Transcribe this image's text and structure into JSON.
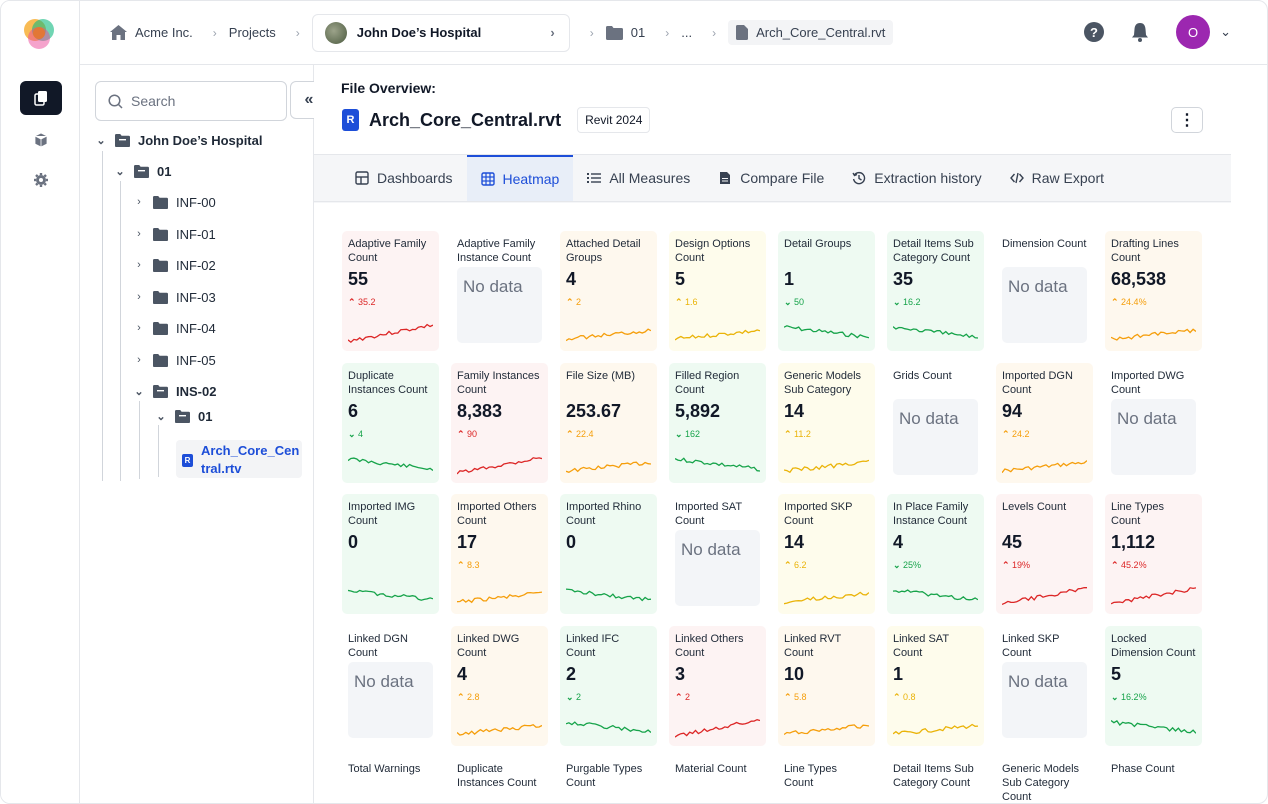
{
  "breadcrumb": {
    "org": "Acme Inc.",
    "projects": "Projects",
    "project": "John Doe’s Hospital",
    "folder": "01",
    "ellipsis": "...",
    "file": "Arch_Core_Central.rvt"
  },
  "user": {
    "initial": "O",
    "avatar_color": "#9c27b0"
  },
  "sidebar": {
    "search_placeholder": "Search",
    "tree": {
      "root": "John Doe’s Hospital",
      "folder_01": "01",
      "children": [
        "INF-00",
        "INF-01",
        "INF-02",
        "INF-03",
        "INF-04",
        "INF-05"
      ],
      "ins": "INS-02",
      "ins_sub": "01",
      "file_line1": "Arch_Core_Cen",
      "file_line2": "tral.rtv"
    }
  },
  "file_overview": {
    "label": "File Overview:",
    "name": "Arch_Core_Central.rvt",
    "version": "Revit 2024",
    "file_icon": "R"
  },
  "tabs": [
    {
      "label": "Dashboards",
      "icon": "grid-icon"
    },
    {
      "label": "Heatmap",
      "icon": "table-icon",
      "active": true
    },
    {
      "label": "All Measures",
      "icon": "list-icon"
    },
    {
      "label": "Compare File",
      "icon": "document-icon"
    },
    {
      "label": "Extraction history",
      "icon": "history-icon"
    },
    {
      "label": "Raw Export",
      "icon": "code-icon"
    }
  ],
  "colors": {
    "red": "#dc2626",
    "orange": "#f59e0b",
    "yellow": "#eab308",
    "green": "#16a34a",
    "accent": "#1d4ed8"
  },
  "no_data_label": "No data",
  "cards": [
    {
      "name": "Adaptive Family Count",
      "value": "55",
      "trend": "35.2",
      "dir": "double-up",
      "status": "red"
    },
    {
      "name": "Adaptive Family Instance Count",
      "value": null,
      "status": "white"
    },
    {
      "name": "Attached Detail Groups",
      "value": "4",
      "trend": "2",
      "dir": "up",
      "status": "orange"
    },
    {
      "name": "Design Options Count",
      "value": "5",
      "trend": "1.6",
      "dir": "up",
      "status": "yellow"
    },
    {
      "name": "Detail Groups",
      "value": "1",
      "trend": "50",
      "dir": "down",
      "status": "green"
    },
    {
      "name": "Detail Items Sub Category Count",
      "value": "35",
      "trend": "16.2",
      "dir": "down",
      "status": "green"
    },
    {
      "name": "Dimension Count",
      "value": null,
      "status": "white"
    },
    {
      "name": "Drafting Lines Count",
      "value": "68,538",
      "trend": "24.4%",
      "dir": "up",
      "status": "orange"
    },
    {
      "name": "Duplicate Instances Count",
      "value": "6",
      "trend": "4",
      "dir": "down",
      "status": "green"
    },
    {
      "name": "Family Instances Count",
      "value": "8,383",
      "trend": "90",
      "dir": "double-up",
      "status": "red"
    },
    {
      "name": "File Size (MB)",
      "value": "253.67",
      "trend": "22.4",
      "dir": "up",
      "status": "orange"
    },
    {
      "name": "Filled Region Count",
      "value": "5,892",
      "trend": "162",
      "dir": "down",
      "status": "green"
    },
    {
      "name": "Generic Models Sub Category",
      "value": "14",
      "trend": "11.2",
      "dir": "up",
      "status": "yellow"
    },
    {
      "name": "Grids Count",
      "value": null,
      "status": "white"
    },
    {
      "name": "Imported DGN Count",
      "value": "94",
      "trend": "24.2",
      "dir": "up",
      "status": "orange"
    },
    {
      "name": "Imported DWG Count",
      "value": null,
      "status": "white"
    },
    {
      "name": "Imported IMG Count",
      "value": "0",
      "trend": "",
      "dir": "none",
      "status": "green"
    },
    {
      "name": "Imported Others Count",
      "value": "17",
      "trend": "8.3",
      "dir": "up",
      "status": "orange"
    },
    {
      "name": "Imported Rhino Count",
      "value": "0",
      "trend": "",
      "dir": "none",
      "status": "green"
    },
    {
      "name": "Imported SAT Count",
      "value": null,
      "status": "white"
    },
    {
      "name": "Imported SKP Count",
      "value": "14",
      "trend": "6.2",
      "dir": "up",
      "status": "yellow"
    },
    {
      "name": "In Place Family Instance Count",
      "value": "4",
      "trend": "25%",
      "dir": "down",
      "status": "green"
    },
    {
      "name": "Levels Count",
      "value": "45",
      "trend": "19%",
      "dir": "double-up",
      "status": "red"
    },
    {
      "name": "Line Types Count",
      "value": "1,112",
      "trend": "45.2%",
      "dir": "double-up",
      "status": "red"
    },
    {
      "name": "Linked DGN Count",
      "value": null,
      "status": "white"
    },
    {
      "name": "Linked DWG Count",
      "value": "4",
      "trend": "2.8",
      "dir": "up",
      "status": "orange"
    },
    {
      "name": "Linked IFC Count",
      "value": "2",
      "trend": "2",
      "dir": "down",
      "status": "green"
    },
    {
      "name": "Linked Others Count",
      "value": "3",
      "trend": "2",
      "dir": "double-up",
      "status": "red"
    },
    {
      "name": "Linked RVT Count",
      "value": "10",
      "trend": "5.8",
      "dir": "up",
      "status": "orange"
    },
    {
      "name": "Linked SAT Count",
      "value": "1",
      "trend": "0.8",
      "dir": "up",
      "status": "yellow"
    },
    {
      "name": "Linked SKP Count",
      "value": null,
      "status": "white"
    },
    {
      "name": "Locked Dimension Count",
      "value": "5",
      "trend": "16.2%",
      "dir": "down",
      "status": "green"
    },
    {
      "name": "Total Warnings",
      "value": "",
      "status": "white",
      "partial": true
    },
    {
      "name": "Duplicate Instances Count",
      "value": "",
      "status": "white",
      "partial": true
    },
    {
      "name": "Purgable Types Count",
      "value": "",
      "status": "white",
      "partial": true
    },
    {
      "name": "Material Count",
      "value": "",
      "status": "white",
      "partial": true
    },
    {
      "name": "Line Types Count",
      "value": "",
      "status": "white",
      "partial": true
    },
    {
      "name": "Detail Items Sub Category Count",
      "value": "",
      "status": "white",
      "partial": true
    },
    {
      "name": "Generic Models Sub Category Count",
      "value": "",
      "status": "white",
      "partial": true
    },
    {
      "name": "Phase Count",
      "value": "",
      "status": "white",
      "partial": true
    }
  ]
}
